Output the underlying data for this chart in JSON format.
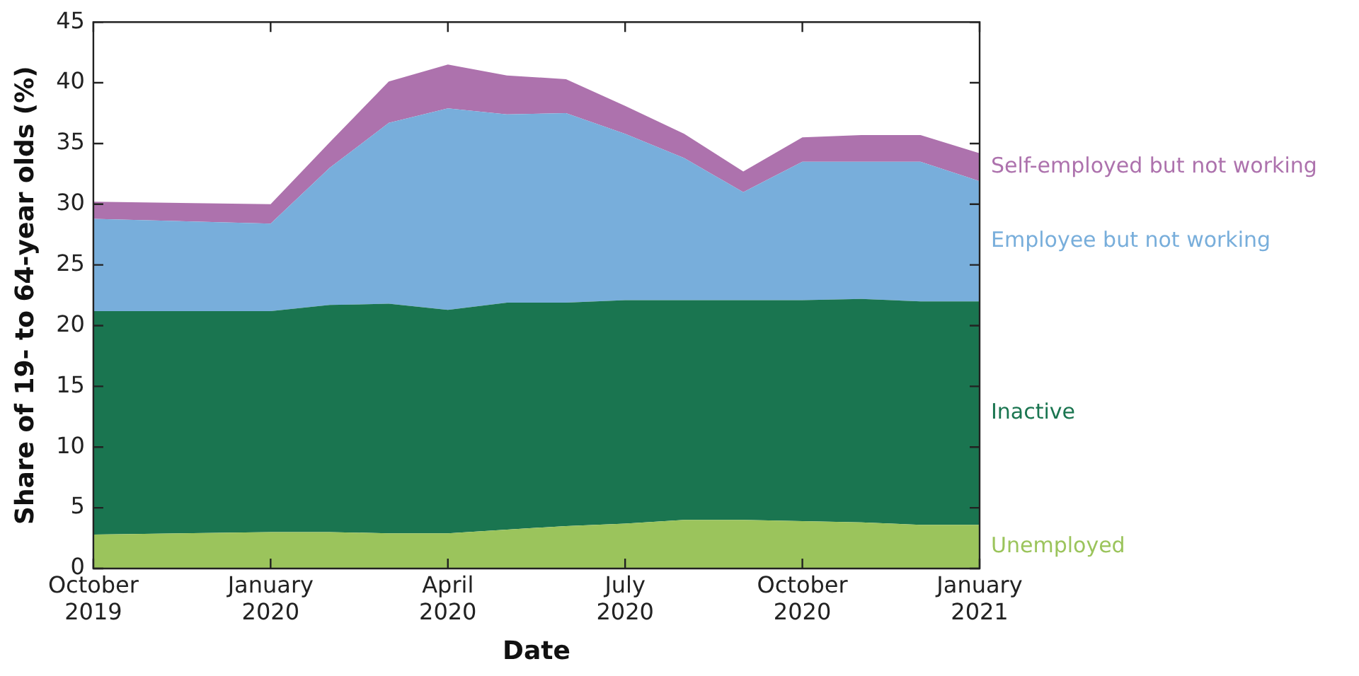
{
  "chart_data": {
    "type": "area",
    "stacked": true,
    "xlabel": "Date",
    "ylabel": "Share of 19- to 64-year olds (%)",
    "x": [
      "2019-10",
      "2020-01",
      "2020-02",
      "2020-03",
      "2020-04",
      "2020-05",
      "2020-06",
      "2020-07",
      "2020-08",
      "2020-09",
      "2020-10",
      "2020-11",
      "2020-12",
      "2021-01"
    ],
    "xlim": [
      "2019-10",
      "2021-01"
    ],
    "xticks": [
      {
        "value": "2019-10",
        "label": "October 2019"
      },
      {
        "value": "2020-01",
        "label": "January 2020"
      },
      {
        "value": "2020-04",
        "label": "April 2020"
      },
      {
        "value": "2020-07",
        "label": "July 2020"
      },
      {
        "value": "2020-10",
        "label": "October 2020"
      },
      {
        "value": "2021-01",
        "label": "January 2021"
      }
    ],
    "ylim": [
      0,
      45
    ],
    "yticks": [
      0,
      5,
      10,
      15,
      20,
      25,
      30,
      35,
      40,
      45
    ],
    "legend": false,
    "series": [
      {
        "name": "Unemployed",
        "color": "#9bc45c",
        "values": [
          2.8,
          3.0,
          3.0,
          2.9,
          2.9,
          3.2,
          3.5,
          3.7,
          4.0,
          4.0,
          3.9,
          3.8,
          3.6,
          3.6
        ]
      },
      {
        "name": "Inactive",
        "color": "#1a7550",
        "values": [
          18.4,
          18.2,
          18.7,
          18.9,
          18.4,
          18.7,
          18.4,
          18.4,
          18.1,
          18.1,
          18.2,
          18.4,
          18.4,
          18.4
        ]
      },
      {
        "name": "Employee but not working",
        "color": "#78aedb",
        "values": [
          7.6,
          7.2,
          11.3,
          14.9,
          16.6,
          15.5,
          15.6,
          13.7,
          11.7,
          8.9,
          11.4,
          11.3,
          11.5,
          9.9
        ]
      },
      {
        "name": "Self-employed but not working",
        "color": "#ad72ad",
        "values": [
          1.4,
          1.6,
          2.1,
          3.4,
          3.6,
          3.2,
          2.8,
          2.3,
          2.0,
          1.7,
          2.0,
          2.2,
          2.2,
          2.3
        ]
      }
    ]
  }
}
